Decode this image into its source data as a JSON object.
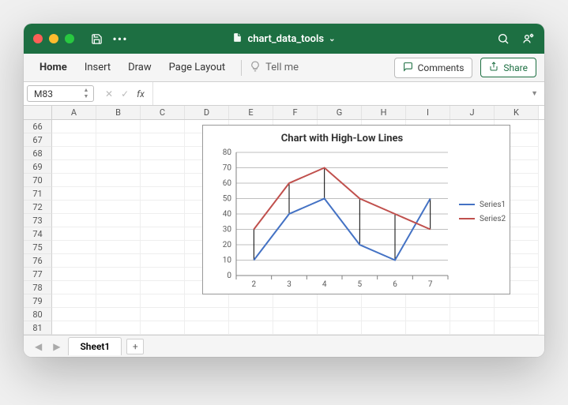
{
  "window": {
    "title": "chart_data_tools"
  },
  "ribbon": {
    "tabs": [
      "Home",
      "Insert",
      "Draw",
      "Page Layout"
    ],
    "active_index": 0,
    "tellme": "Tell me",
    "comments": "Comments",
    "share": "Share"
  },
  "namebox": {
    "value": "M83"
  },
  "formula": {
    "value": ""
  },
  "grid": {
    "columns": [
      "A",
      "B",
      "C",
      "D",
      "E",
      "F",
      "G",
      "H",
      "I",
      "J",
      "K"
    ],
    "start_row": 66,
    "end_row": 81
  },
  "sheets": {
    "active": "Sheet1"
  },
  "chart": {
    "type": "line",
    "title": "Chart with High-Low Lines",
    "title_fontsize": 13,
    "title_fontweight": "bold",
    "background_color": "#ffffff",
    "plot_border_color": "#808080",
    "grid_color": "#bfbfbf",
    "axis_color": "#808080",
    "tick_label_fontsize": 10,
    "tick_label_color": "#595959",
    "categories": [
      "2",
      "3",
      "4",
      "5",
      "6",
      "7"
    ],
    "ylim": [
      0,
      80
    ],
    "ytick_step": 10,
    "line_width": 2,
    "legend": {
      "position": "right",
      "fontsize": 10,
      "text_color": "#595959"
    },
    "series": [
      {
        "name": "Series1",
        "color": "#4472c4",
        "values": [
          10,
          40,
          50,
          20,
          10,
          50
        ]
      },
      {
        "name": "Series2",
        "color": "#c0504d",
        "values": [
          30,
          60,
          70,
          50,
          40,
          30
        ]
      }
    ],
    "high_low_lines": {
      "enabled": true,
      "color": "#000000",
      "width": 1
    }
  }
}
